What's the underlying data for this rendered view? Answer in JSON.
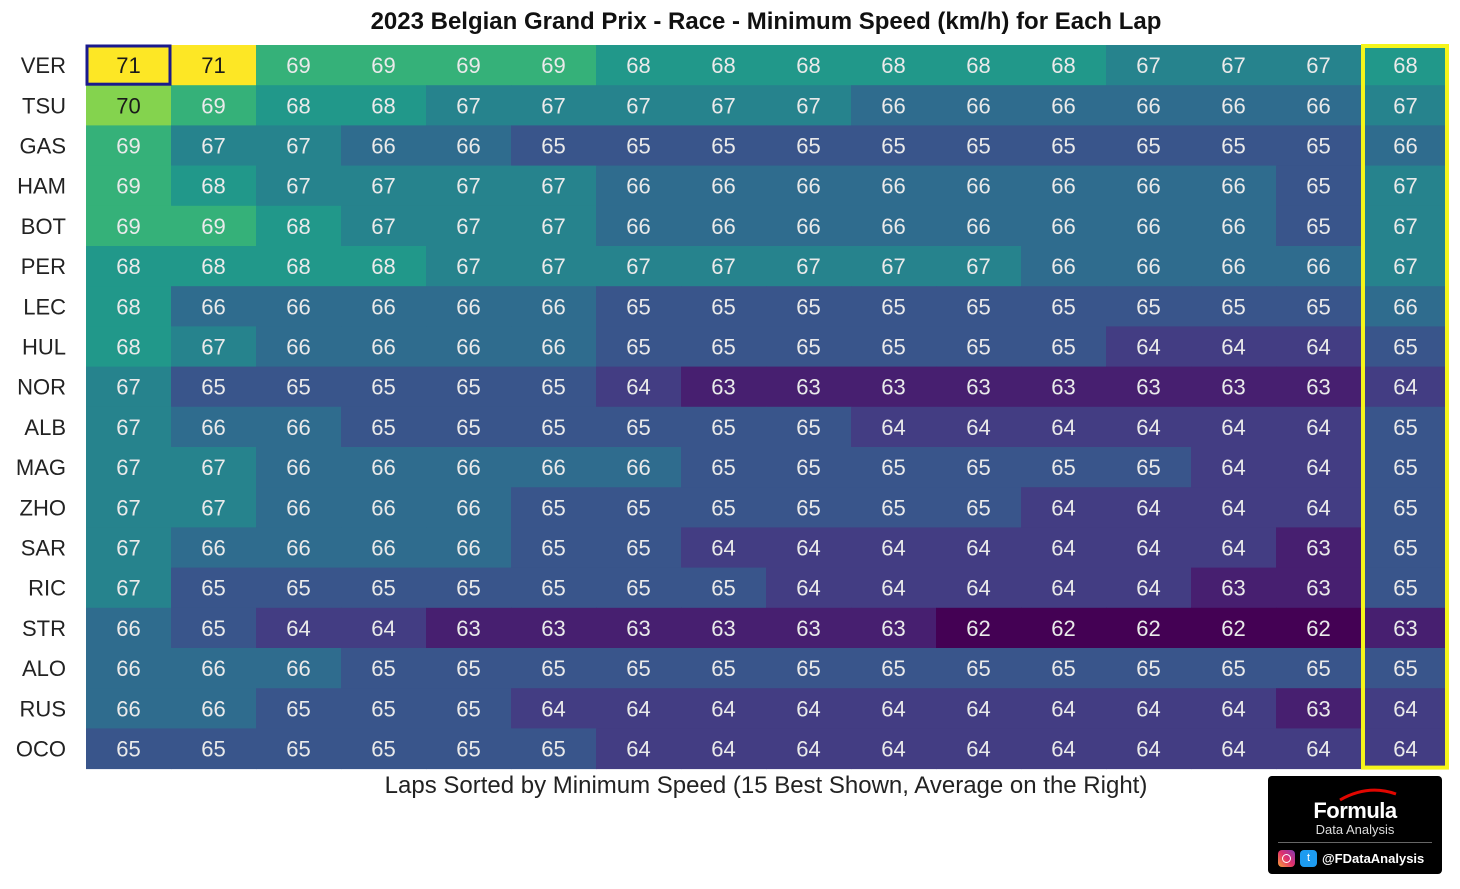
{
  "chart_data": {
    "type": "heatmap",
    "title": "2023 Belgian Grand Prix - Race - Minimum Speed (km/h) for Each Lap",
    "xlabel": "Laps Sorted by Minimum Speed (15 Best Shown, Average on the Right)",
    "ylabel": "",
    "colormap": "viridis",
    "color_range": [
      62,
      71
    ],
    "drivers": [
      "VER",
      "TSU",
      "GAS",
      "HAM",
      "BOT",
      "PER",
      "LEC",
      "HUL",
      "NOR",
      "ALB",
      "MAG",
      "ZHO",
      "SAR",
      "RIC",
      "STR",
      "ALO",
      "RUS",
      "OCO"
    ],
    "laps": [
      [
        71,
        71,
        69,
        69,
        69,
        69,
        68,
        68,
        68,
        68,
        68,
        68,
        67,
        67,
        67
      ],
      [
        70,
        69,
        68,
        68,
        67,
        67,
        67,
        67,
        67,
        66,
        66,
        66,
        66,
        66,
        66
      ],
      [
        69,
        67,
        67,
        66,
        66,
        65,
        65,
        65,
        65,
        65,
        65,
        65,
        65,
        65,
        65
      ],
      [
        69,
        68,
        67,
        67,
        67,
        67,
        66,
        66,
        66,
        66,
        66,
        66,
        66,
        66,
        65
      ],
      [
        69,
        69,
        68,
        67,
        67,
        67,
        66,
        66,
        66,
        66,
        66,
        66,
        66,
        66,
        65
      ],
      [
        68,
        68,
        68,
        68,
        67,
        67,
        67,
        67,
        67,
        67,
        67,
        66,
        66,
        66,
        66
      ],
      [
        68,
        66,
        66,
        66,
        66,
        66,
        65,
        65,
        65,
        65,
        65,
        65,
        65,
        65,
        65
      ],
      [
        68,
        67,
        66,
        66,
        66,
        66,
        65,
        65,
        65,
        65,
        65,
        65,
        64,
        64,
        64
      ],
      [
        67,
        65,
        65,
        65,
        65,
        65,
        64,
        63,
        63,
        63,
        63,
        63,
        63,
        63,
        63
      ],
      [
        67,
        66,
        66,
        65,
        65,
        65,
        65,
        65,
        65,
        64,
        64,
        64,
        64,
        64,
        64
      ],
      [
        67,
        67,
        66,
        66,
        66,
        66,
        66,
        65,
        65,
        65,
        65,
        65,
        65,
        64,
        64
      ],
      [
        67,
        67,
        66,
        66,
        66,
        65,
        65,
        65,
        65,
        65,
        65,
        64,
        64,
        64,
        64
      ],
      [
        67,
        66,
        66,
        66,
        66,
        65,
        65,
        64,
        64,
        64,
        64,
        64,
        64,
        64,
        63
      ],
      [
        67,
        65,
        65,
        65,
        65,
        65,
        65,
        65,
        64,
        64,
        64,
        64,
        64,
        63,
        63
      ],
      [
        66,
        65,
        64,
        64,
        63,
        63,
        63,
        63,
        63,
        63,
        62,
        62,
        62,
        62,
        62
      ],
      [
        66,
        66,
        66,
        65,
        65,
        65,
        65,
        65,
        65,
        65,
        65,
        65,
        65,
        65,
        65
      ],
      [
        66,
        66,
        65,
        65,
        65,
        64,
        64,
        64,
        64,
        64,
        64,
        64,
        64,
        64,
        63
      ],
      [
        65,
        65,
        65,
        65,
        65,
        65,
        64,
        64,
        64,
        64,
        64,
        64,
        64,
        64,
        64
      ]
    ],
    "average": [
      68,
      67,
      66,
      67,
      67,
      67,
      66,
      65,
      64,
      65,
      65,
      65,
      65,
      65,
      63,
      65,
      64,
      64
    ],
    "highlight_colors": {
      "best_cell_border": "#1a1a8c",
      "average_column_border": "#f5f51a"
    }
  },
  "branding": {
    "name": "Formula",
    "subtitle": "Data Analysis",
    "handle": "@FDataAnalysis",
    "twitter_glyph": "t",
    "icons": [
      "instagram-icon",
      "twitter-icon"
    ]
  }
}
